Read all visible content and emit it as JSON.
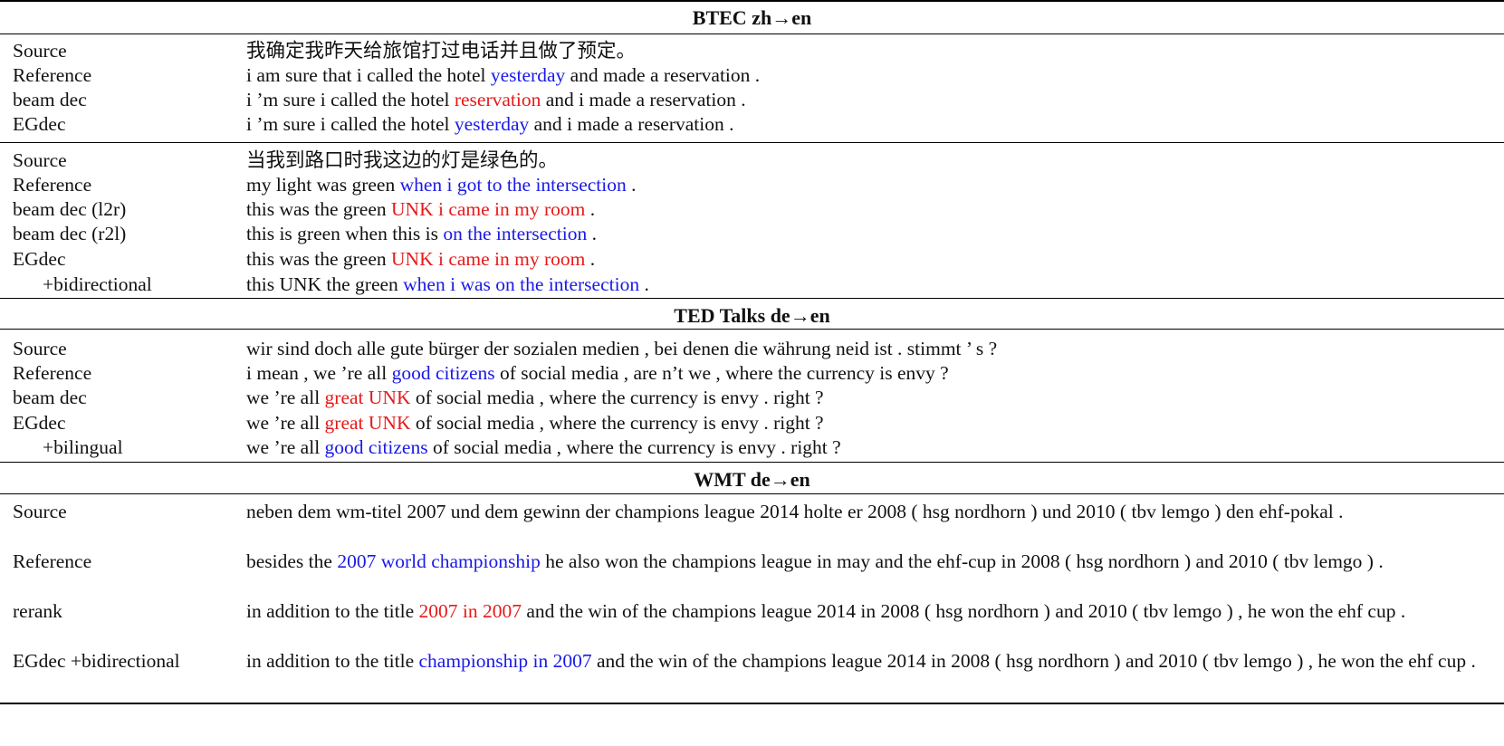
{
  "colors": {
    "good": "#1a1ae6",
    "bad": "#e61a1a",
    "rule": "#000000"
  },
  "sections": [
    {
      "title": "BTEC zh→en",
      "groups": [
        {
          "rows": [
            {
              "label": "Source",
              "segments": [
                {
                  "t": "我确定我昨天给旅馆打过电话并且做了预定。"
                }
              ]
            },
            {
              "label": "Reference",
              "segments": [
                {
                  "t": "i am sure that i called the hotel "
                },
                {
                  "t": "yesterday",
                  "c": "blue"
                },
                {
                  "t": " and made a reservation ."
                }
              ]
            },
            {
              "label": "beam dec",
              "segments": [
                {
                  "t": "i ’m sure i called the hotel "
                },
                {
                  "t": "reservation",
                  "c": "red"
                },
                {
                  "t": " and i made a reservation ."
                }
              ]
            },
            {
              "label": "EGdec",
              "segments": [
                {
                  "t": "i ’m sure i called the hotel "
                },
                {
                  "t": "yesterday",
                  "c": "blue"
                },
                {
                  "t": " and i made a reservation ."
                }
              ]
            }
          ]
        },
        {
          "rows": [
            {
              "label": "Source",
              "segments": [
                {
                  "t": "当我到路口时我这边的灯是绿色的。"
                }
              ]
            },
            {
              "label": "Reference",
              "segments": [
                {
                  "t": "my light was green "
                },
                {
                  "t": "when i got to the intersection",
                  "c": "blue"
                },
                {
                  "t": " ."
                }
              ]
            },
            {
              "label": "beam dec (l2r)",
              "segments": [
                {
                  "t": "this was the green "
                },
                {
                  "t": "UNK i came in my room",
                  "c": "red"
                },
                {
                  "t": " ."
                }
              ]
            },
            {
              "label": "beam dec (r2l)",
              "segments": [
                {
                  "t": "this is green when this is "
                },
                {
                  "t": "on the intersection",
                  "c": "blue"
                },
                {
                  "t": " ."
                }
              ]
            },
            {
              "label": "EGdec",
              "segments": [
                {
                  "t": "this was the green "
                },
                {
                  "t": "UNK i came in my room",
                  "c": "red"
                },
                {
                  "t": " ."
                }
              ]
            },
            {
              "label": "+bidirectional",
              "indent": true,
              "segments": [
                {
                  "t": "this UNK the green "
                },
                {
                  "t": "when i was on the intersection",
                  "c": "blue"
                },
                {
                  "t": " ."
                }
              ]
            }
          ]
        }
      ]
    },
    {
      "title": "TED Talks de→en",
      "groups": [
        {
          "rows": [
            {
              "label": "Source",
              "segments": [
                {
                  "t": "wir sind doch alle gute bürger der sozialen medien , bei denen die währung neid ist . stimmt ’ s ?"
                }
              ]
            },
            {
              "label": "Reference",
              "segments": [
                {
                  "t": "i mean , we ’re all "
                },
                {
                  "t": "good citizens",
                  "c": "blue"
                },
                {
                  "t": " of social media , are n’t we , where the currency is envy ?"
                }
              ]
            },
            {
              "label": "beam dec",
              "segments": [
                {
                  "t": "we ’re all "
                },
                {
                  "t": "great UNK",
                  "c": "red"
                },
                {
                  "t": " of social media , where the currency is envy . right ?"
                }
              ]
            },
            {
              "label": "EGdec",
              "segments": [
                {
                  "t": "we ’re all "
                },
                {
                  "t": "great UNK",
                  "c": "red"
                },
                {
                  "t": " of social media , where the currency is envy . right ?"
                }
              ]
            },
            {
              "label": "+bilingual",
              "indent": true,
              "segments": [
                {
                  "t": "we ’re all "
                },
                {
                  "t": "good citizens",
                  "c": "blue"
                },
                {
                  "t": " of social media , where the currency is envy . right ?"
                }
              ]
            }
          ]
        }
      ]
    },
    {
      "title": "WMT de→en",
      "groups": [
        {
          "rows": [
            {
              "label": "Source",
              "segments": [
                {
                  "t": "neben dem wm-titel 2007 und dem gewinn der champions league 2014 holte er 2008 ( hsg nordhorn ) und 2010 ( tbv lemgo ) den ehf-pokal ."
                }
              ]
            },
            {
              "label": "Reference",
              "segments": [
                {
                  "t": "besides the "
                },
                {
                  "t": "2007 world championship",
                  "c": "blue"
                },
                {
                  "t": " he also won the champions league in may and the ehf-cup in 2008 ( hsg nordhorn ) and 2010 ( tbv lemgo ) ."
                }
              ]
            },
            {
              "label": "rerank",
              "segments": [
                {
                  "t": "in addition to the title "
                },
                {
                  "t": "2007 in 2007",
                  "c": "red"
                },
                {
                  "t": " and the win of the champions league 2014 in 2008 ( hsg nordhorn ) and 2010 ( tbv lemgo ) , he won the ehf cup ."
                }
              ]
            },
            {
              "label": "EGdec +bidirectional",
              "segments": [
                {
                  "t": "in addition to the title "
                },
                {
                  "t": "championship in 2007",
                  "c": "blue"
                },
                {
                  "t": " and the win of the champions league 2014 in 2008 ( hsg nordhorn ) and 2010 ( tbv lemgo ) , he won the ehf cup ."
                }
              ]
            }
          ]
        }
      ]
    }
  ]
}
